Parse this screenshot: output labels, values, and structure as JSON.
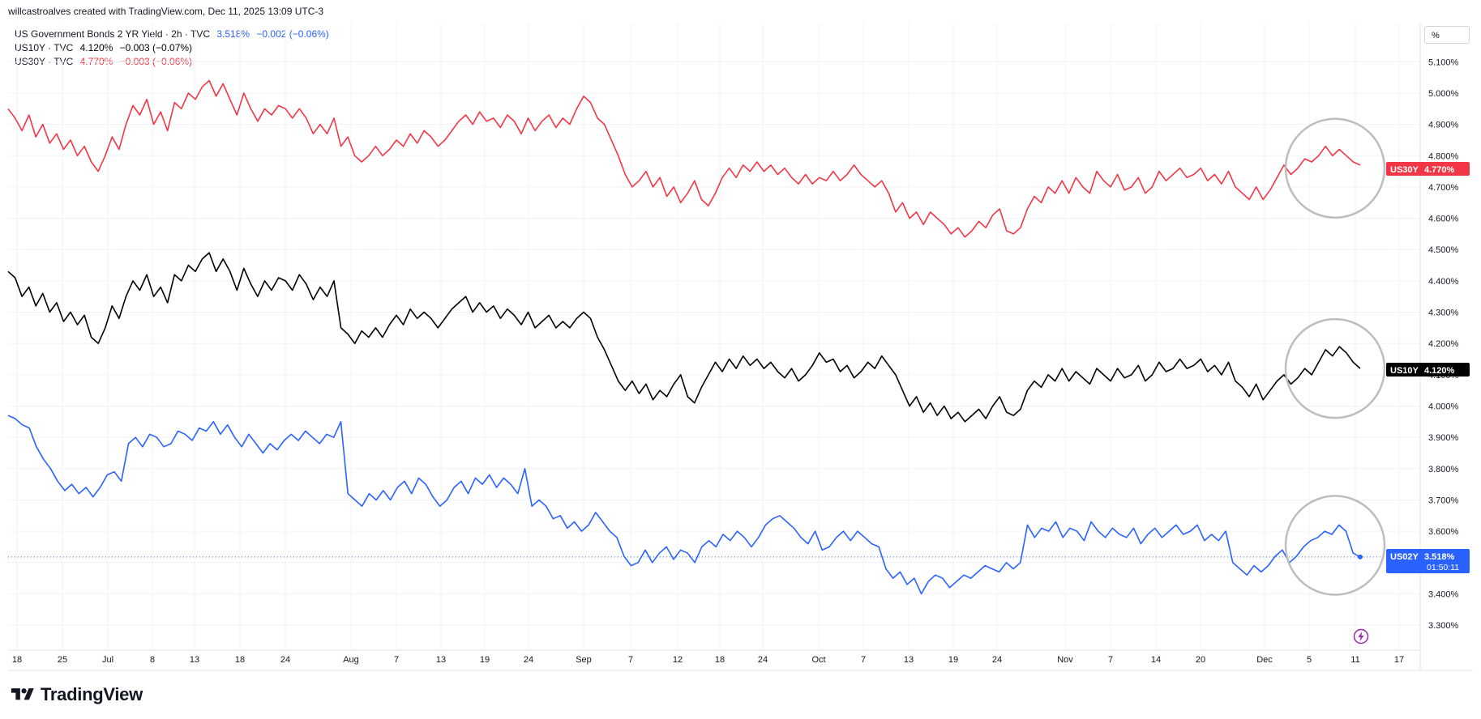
{
  "header": {
    "credit": "willcastroalves created with TradingView.com, Dec 11, 2025 13:09 UTC-3"
  },
  "price_scale": {
    "unit_label": "%"
  },
  "legend": [
    {
      "desc": "US Government Bonds 2 YR Yield · 2h · TVC",
      "value": "3.518%",
      "change": "−0.002 (−0.06%)",
      "color": "#2962ff"
    },
    {
      "desc": "US10Y · TVC",
      "value": "4.120%",
      "change": "−0.003 (−0.07%)",
      "color": "#000000"
    },
    {
      "desc": "US30Y · TVC",
      "value": "4.770%",
      "change": "−0.003 (−0.06%)",
      "color": "#f23645"
    }
  ],
  "price_tags": {
    "us30y": {
      "symbol": "US30Y",
      "value": "4.770%"
    },
    "us10y": {
      "symbol": "US10Y",
      "value": "4.120%"
    },
    "us02y": {
      "symbol": "US02Y",
      "value": "3.518%",
      "countdown": "01:50:11"
    }
  },
  "branding": {
    "logo_text": "TradingView"
  },
  "chart_data": {
    "type": "line",
    "x_ticks": [
      "18",
      "25",
      "Jul",
      "8",
      "13",
      "18",
      "24",
      "Aug",
      "7",
      "13",
      "19",
      "24",
      "Sep",
      "7",
      "12",
      "18",
      "24",
      "Oct",
      "7",
      "13",
      "19",
      "24",
      "Nov",
      "7",
      "14",
      "20",
      "Dec",
      "5",
      "11",
      "17"
    ],
    "y_ticks": [
      "5.100%",
      "5.000%",
      "4.900%",
      "4.800%",
      "4.700%",
      "4.600%",
      "4.500%",
      "4.400%",
      "4.300%",
      "4.200%",
      "4.100%",
      "4.000%",
      "3.900%",
      "3.800%",
      "3.700%",
      "3.600%",
      "3.500%",
      "3.400%",
      "3.300%"
    ],
    "ylim": [
      3.22,
      5.225
    ],
    "grid": true,
    "series": [
      {
        "name": "US30Y",
        "color": "#f23645",
        "values": [
          4.95,
          4.92,
          4.88,
          4.93,
          4.86,
          4.9,
          4.84,
          4.87,
          4.82,
          4.85,
          4.8,
          4.83,
          4.78,
          4.75,
          4.8,
          4.86,
          4.82,
          4.9,
          4.96,
          4.93,
          4.98,
          4.9,
          4.94,
          4.88,
          4.97,
          4.95,
          5.0,
          4.98,
          5.02,
          5.04,
          4.99,
          5.03,
          4.98,
          4.93,
          5.0,
          4.95,
          4.91,
          4.95,
          4.93,
          4.96,
          4.95,
          4.92,
          4.95,
          4.92,
          4.87,
          4.9,
          4.87,
          4.92,
          4.83,
          4.86,
          4.8,
          4.78,
          4.8,
          4.83,
          4.8,
          4.82,
          4.85,
          4.83,
          4.87,
          4.84,
          4.88,
          4.86,
          4.83,
          4.85,
          4.88,
          4.91,
          4.93,
          4.9,
          4.94,
          4.91,
          4.92,
          4.89,
          4.93,
          4.91,
          4.87,
          4.92,
          4.88,
          4.91,
          4.93,
          4.89,
          4.92,
          4.9,
          4.95,
          4.99,
          4.97,
          4.92,
          4.9,
          4.85,
          4.8,
          4.74,
          4.7,
          4.72,
          4.75,
          4.7,
          4.73,
          4.67,
          4.7,
          4.65,
          4.68,
          4.72,
          4.66,
          4.64,
          4.68,
          4.73,
          4.76,
          4.73,
          4.77,
          4.75,
          4.78,
          4.75,
          4.77,
          4.74,
          4.76,
          4.73,
          4.71,
          4.74,
          4.71,
          4.73,
          4.72,
          4.75,
          4.72,
          4.74,
          4.77,
          4.74,
          4.72,
          4.7,
          4.72,
          4.68,
          4.62,
          4.65,
          4.6,
          4.62,
          4.58,
          4.62,
          4.6,
          4.58,
          4.55,
          4.57,
          4.54,
          4.56,
          4.59,
          4.57,
          4.61,
          4.63,
          4.56,
          4.55,
          4.57,
          4.63,
          4.67,
          4.65,
          4.7,
          4.68,
          4.72,
          4.68,
          4.73,
          4.7,
          4.68,
          4.75,
          4.72,
          4.7,
          4.74,
          4.69,
          4.7,
          4.73,
          4.68,
          4.7,
          4.75,
          4.72,
          4.74,
          4.76,
          4.73,
          4.74,
          4.76,
          4.72,
          4.74,
          4.71,
          4.75,
          4.7,
          4.68,
          4.66,
          4.7,
          4.66,
          4.69,
          4.73,
          4.77,
          4.74,
          4.76,
          4.79,
          4.78,
          4.8,
          4.83,
          4.8,
          4.82,
          4.8,
          4.78,
          4.77
        ],
        "last": "4.770%"
      },
      {
        "name": "US10Y",
        "color": "#000000",
        "values": [
          4.43,
          4.41,
          4.35,
          4.38,
          4.32,
          4.36,
          4.3,
          4.33,
          4.27,
          4.3,
          4.26,
          4.29,
          4.22,
          4.2,
          4.25,
          4.32,
          4.28,
          4.35,
          4.4,
          4.37,
          4.42,
          4.35,
          4.38,
          4.33,
          4.42,
          4.4,
          4.45,
          4.43,
          4.47,
          4.49,
          4.43,
          4.47,
          4.43,
          4.37,
          4.44,
          4.39,
          4.35,
          4.4,
          4.37,
          4.41,
          4.4,
          4.37,
          4.42,
          4.39,
          4.34,
          4.38,
          4.35,
          4.4,
          4.25,
          4.23,
          4.2,
          4.24,
          4.22,
          4.25,
          4.22,
          4.26,
          4.29,
          4.26,
          4.31,
          4.28,
          4.3,
          4.28,
          4.25,
          4.28,
          4.31,
          4.33,
          4.35,
          4.3,
          4.33,
          4.3,
          4.32,
          4.28,
          4.31,
          4.29,
          4.26,
          4.3,
          4.25,
          4.27,
          4.29,
          4.25,
          4.27,
          4.25,
          4.28,
          4.3,
          4.28,
          4.22,
          4.18,
          4.13,
          4.08,
          4.05,
          4.08,
          4.04,
          4.07,
          4.02,
          4.05,
          4.03,
          4.07,
          4.1,
          4.03,
          4.01,
          4.06,
          4.1,
          4.14,
          4.11,
          4.15,
          4.12,
          4.16,
          4.13,
          4.15,
          4.12,
          4.14,
          4.11,
          4.09,
          4.12,
          4.08,
          4.1,
          4.13,
          4.17,
          4.14,
          4.15,
          4.11,
          4.13,
          4.09,
          4.11,
          4.14,
          4.12,
          4.16,
          4.13,
          4.1,
          4.05,
          4.0,
          4.03,
          3.98,
          4.01,
          3.97,
          4.0,
          3.96,
          3.98,
          3.95,
          3.97,
          3.99,
          3.96,
          4.0,
          4.03,
          3.98,
          3.97,
          3.99,
          4.05,
          4.08,
          4.06,
          4.1,
          4.08,
          4.12,
          4.08,
          4.11,
          4.09,
          4.07,
          4.12,
          4.1,
          4.08,
          4.12,
          4.09,
          4.1,
          4.13,
          4.08,
          4.1,
          4.14,
          4.11,
          4.12,
          4.15,
          4.12,
          4.13,
          4.15,
          4.11,
          4.13,
          4.1,
          4.14,
          4.08,
          4.06,
          4.03,
          4.07,
          4.02,
          4.05,
          4.08,
          4.1,
          4.07,
          4.09,
          4.12,
          4.1,
          4.14,
          4.18,
          4.16,
          4.19,
          4.17,
          4.14,
          4.12
        ],
        "last": "4.120%"
      },
      {
        "name": "US02Y",
        "color": "#2962ff",
        "values": [
          3.97,
          3.96,
          3.94,
          3.93,
          3.87,
          3.83,
          3.8,
          3.76,
          3.73,
          3.75,
          3.72,
          3.74,
          3.71,
          3.74,
          3.78,
          3.79,
          3.76,
          3.88,
          3.9,
          3.87,
          3.91,
          3.9,
          3.87,
          3.88,
          3.92,
          3.91,
          3.89,
          3.93,
          3.92,
          3.95,
          3.91,
          3.94,
          3.9,
          3.87,
          3.91,
          3.88,
          3.85,
          3.88,
          3.86,
          3.89,
          3.91,
          3.89,
          3.92,
          3.9,
          3.88,
          3.91,
          3.9,
          3.95,
          3.72,
          3.7,
          3.68,
          3.72,
          3.7,
          3.73,
          3.7,
          3.74,
          3.76,
          3.72,
          3.77,
          3.75,
          3.71,
          3.68,
          3.7,
          3.74,
          3.76,
          3.72,
          3.77,
          3.75,
          3.78,
          3.74,
          3.77,
          3.75,
          3.72,
          3.8,
          3.68,
          3.7,
          3.68,
          3.64,
          3.65,
          3.61,
          3.63,
          3.6,
          3.62,
          3.66,
          3.63,
          3.6,
          3.58,
          3.52,
          3.49,
          3.5,
          3.54,
          3.5,
          3.53,
          3.55,
          3.51,
          3.54,
          3.53,
          3.5,
          3.55,
          3.57,
          3.55,
          3.59,
          3.57,
          3.6,
          3.58,
          3.55,
          3.58,
          3.62,
          3.64,
          3.65,
          3.63,
          3.61,
          3.58,
          3.56,
          3.6,
          3.54,
          3.55,
          3.58,
          3.6,
          3.57,
          3.6,
          3.58,
          3.56,
          3.55,
          3.48,
          3.45,
          3.47,
          3.43,
          3.45,
          3.4,
          3.44,
          3.46,
          3.45,
          3.42,
          3.44,
          3.46,
          3.45,
          3.47,
          3.49,
          3.48,
          3.47,
          3.5,
          3.48,
          3.5,
          3.62,
          3.58,
          3.61,
          3.6,
          3.63,
          3.58,
          3.61,
          3.6,
          3.57,
          3.63,
          3.6,
          3.58,
          3.61,
          3.59,
          3.58,
          3.61,
          3.56,
          3.59,
          3.61,
          3.58,
          3.6,
          3.62,
          3.59,
          3.6,
          3.62,
          3.57,
          3.59,
          3.57,
          3.6,
          3.5,
          3.48,
          3.46,
          3.49,
          3.47,
          3.49,
          3.52,
          3.54,
          3.5,
          3.52,
          3.55,
          3.57,
          3.58,
          3.6,
          3.59,
          3.62,
          3.6,
          3.53,
          3.518
        ],
        "last": "3.518%"
      }
    ],
    "annotations": [
      "circle around latest US30Y movement",
      "circle around latest US10Y movement",
      "circle around latest US02Y movement"
    ]
  }
}
